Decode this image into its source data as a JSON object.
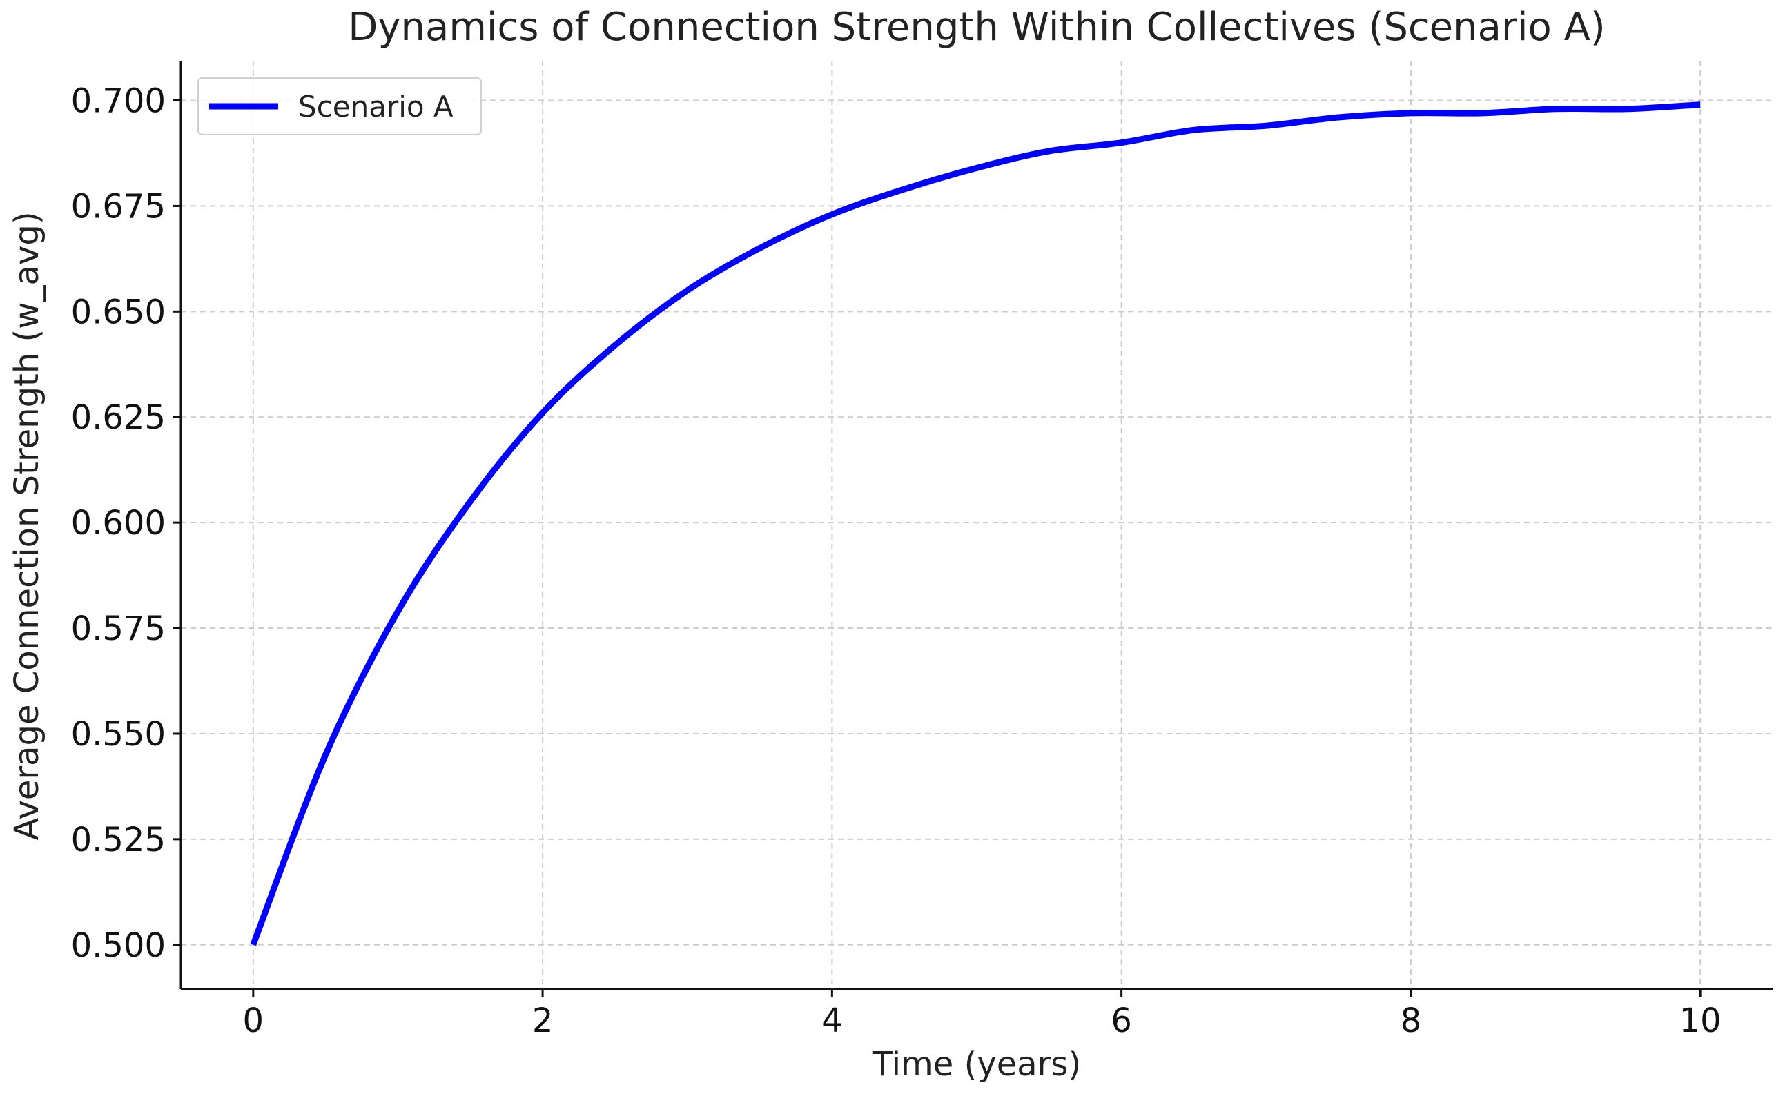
{
  "chart_data": {
    "type": "line",
    "title": "Dynamics of Connection Strength Within Collectives (Scenario A)",
    "xlabel": "Time (years)",
    "ylabel": "Average Connection Strength (w_avg)",
    "xlim": [
      -0.5,
      10.5
    ],
    "ylim": [
      0.4895,
      0.7094
    ],
    "xticks": [
      0,
      2,
      4,
      6,
      8,
      10
    ],
    "xtick_labels": [
      "0",
      "2",
      "4",
      "6",
      "8",
      "10"
    ],
    "yticks": [
      0.5,
      0.525,
      0.55,
      0.575,
      0.6,
      0.625,
      0.65,
      0.675,
      0.7
    ],
    "ytick_labels": [
      "0.500",
      "0.525",
      "0.550",
      "0.575",
      "0.600",
      "0.625",
      "0.650",
      "0.675",
      "0.700"
    ],
    "grid": true,
    "legend_position": "top-left",
    "series": [
      {
        "name": "Scenario A",
        "color": "#0000ff",
        "x": [
          0,
          0.5,
          1,
          1.5,
          2,
          2.5,
          3,
          3.5,
          4,
          4.5,
          5,
          5.5,
          6,
          6.5,
          7,
          7.5,
          8,
          8.5,
          9,
          9.5,
          10
        ],
        "y": [
          0.5,
          0.545,
          0.579,
          0.605,
          0.626,
          0.642,
          0.655,
          0.665,
          0.673,
          0.679,
          0.684,
          0.688,
          0.69,
          0.693,
          0.694,
          0.696,
          0.697,
          0.697,
          0.698,
          0.698,
          0.699
        ]
      }
    ]
  }
}
